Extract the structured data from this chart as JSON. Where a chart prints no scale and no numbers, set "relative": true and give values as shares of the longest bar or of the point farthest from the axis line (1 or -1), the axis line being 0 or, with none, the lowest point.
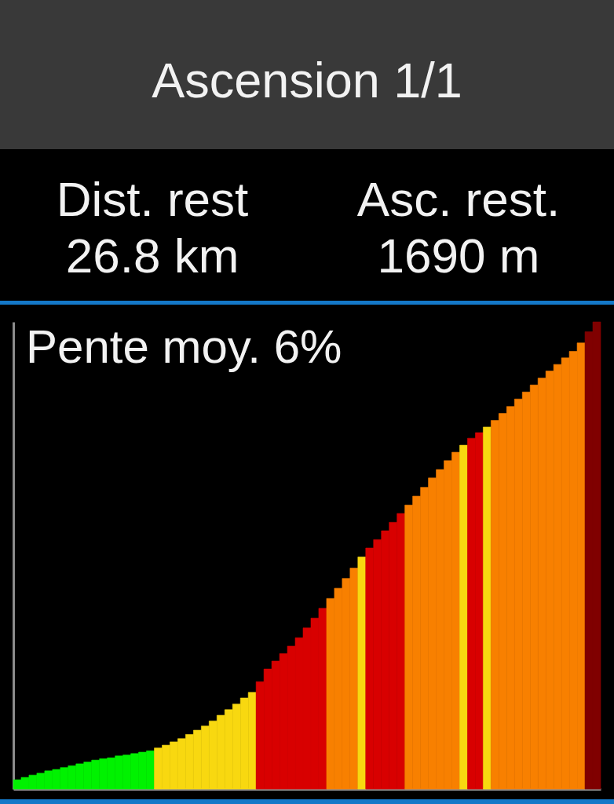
{
  "chart_data": {
    "type": "bar",
    "title": "Ascension 1/1",
    "annotations": [
      "Dist. rest",
      "26.8 km",
      "Asc. rest.",
      "1690 m",
      "Pente moy. 6%"
    ],
    "relative": true,
    "categories": [
      null,
      null,
      null,
      null,
      null,
      null,
      null,
      null,
      null,
      null,
      null,
      null,
      null,
      null,
      null,
      null,
      null,
      null,
      null,
      null,
      null,
      null,
      null,
      null,
      null,
      null,
      null,
      null,
      null,
      null,
      null,
      null,
      null,
      null,
      null,
      null,
      null,
      null,
      null,
      null,
      null,
      null,
      null,
      null,
      null,
      null,
      null,
      null,
      null,
      null,
      null,
      null,
      null,
      null,
      null,
      null,
      null,
      null,
      null,
      null,
      null,
      null,
      null,
      null,
      null,
      null,
      null,
      null,
      null,
      null,
      null,
      null,
      null,
      null,
      null
    ],
    "values": [
      0.02,
      0.025,
      0.03,
      0.034,
      0.039,
      0.042,
      0.046,
      0.05,
      0.054,
      0.058,
      0.062,
      0.065,
      0.067,
      0.071,
      0.073,
      0.076,
      0.079,
      0.082,
      0.088,
      0.094,
      0.101,
      0.108,
      0.117,
      0.126,
      0.135,
      0.146,
      0.158,
      0.17,
      0.182,
      0.195,
      0.207,
      0.23,
      0.257,
      0.274,
      0.29,
      0.306,
      0.324,
      0.345,
      0.366,
      0.387,
      0.408,
      0.43,
      0.451,
      0.473,
      0.497,
      0.516,
      0.534,
      0.553,
      0.571,
      0.59,
      0.608,
      0.627,
      0.646,
      0.666,
      0.684,
      0.703,
      0.721,
      0.736,
      0.751,
      0.763,
      0.775,
      0.789,
      0.804,
      0.819,
      0.835,
      0.85,
      0.865,
      0.88,
      0.895,
      0.909,
      0.923,
      0.937,
      0.955,
      0.979,
      1.0
    ],
    "colors": [
      "#00f200",
      "#00f200",
      "#00f200",
      "#00f200",
      "#00f200",
      "#00f200",
      "#00f200",
      "#00f200",
      "#00f200",
      "#00f200",
      "#00f200",
      "#00f200",
      "#00f200",
      "#00f200",
      "#00f200",
      "#00f200",
      "#00f200",
      "#00f200",
      "#f8d810",
      "#f8d810",
      "#f8d810",
      "#f8d810",
      "#f8d810",
      "#f8d810",
      "#f8d810",
      "#f8d810",
      "#f8d810",
      "#f8d810",
      "#f8d810",
      "#f8d810",
      "#f8d810",
      "#d80000",
      "#d80000",
      "#d80000",
      "#d80000",
      "#d80000",
      "#d80000",
      "#d80000",
      "#d80000",
      "#d80000",
      "#f88000",
      "#f88000",
      "#f88000",
      "#f88000",
      "#f8d810",
      "#d80000",
      "#d80000",
      "#d80000",
      "#d80000",
      "#d80000",
      "#f88000",
      "#f88000",
      "#f88000",
      "#f88000",
      "#f88000",
      "#f88000",
      "#f88000",
      "#f8d810",
      "#d80000",
      "#d80000",
      "#f8d810",
      "#f88000",
      "#f88000",
      "#f88000",
      "#f88000",
      "#f88000",
      "#f88000",
      "#f88000",
      "#f88000",
      "#f88000",
      "#f88000",
      "#f88000",
      "#f88000",
      "#800000",
      "#800000"
    ]
  }
}
